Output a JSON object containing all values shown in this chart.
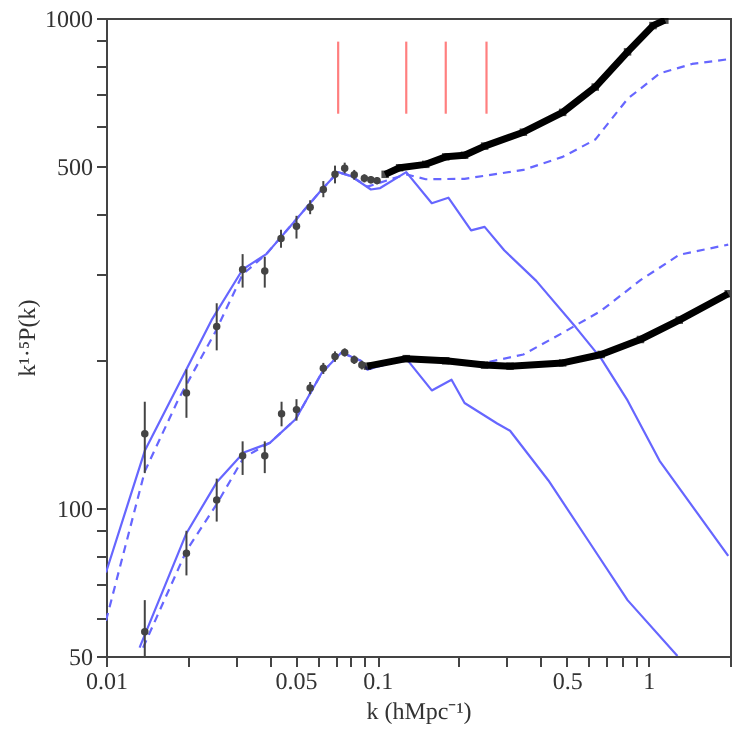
{
  "chart_data": {
    "type": "line",
    "xlabel": "k (hMpc⁻¹)",
    "ylabel": "k¹·⁵P(k)",
    "log": "xy",
    "grid": false,
    "xlim": [
      0.01,
      2
    ],
    "ylim": [
      50,
      1000
    ],
    "xticks": [
      0.01,
      {
        "value": 0.02,
        "label": null
      },
      {
        "value": 0.03,
        "label": null
      },
      {
        "value": 0.04,
        "label": null
      },
      0.05,
      {
        "value": 0.06,
        "label": null
      },
      {
        "value": 0.07,
        "label": null
      },
      {
        "value": 0.08,
        "label": null
      },
      {
        "value": 0.09,
        "label": null
      },
      0.1,
      {
        "value": 0.2,
        "label": null
      },
      {
        "value": 0.3,
        "label": null
      },
      {
        "value": 0.4,
        "label": null
      },
      0.5,
      {
        "value": 0.6,
        "label": null
      },
      {
        "value": 0.7,
        "label": null
      },
      {
        "value": 0.8,
        "label": null
      },
      {
        "value": 0.9,
        "label": null
      },
      1,
      {
        "value": 2,
        "label": null
      }
    ],
    "yticks": [
      50,
      {
        "value": 60,
        "label": null
      },
      {
        "value": 70,
        "label": null
      },
      {
        "value": 80,
        "label": null
      },
      {
        "value": 90,
        "label": null
      },
      100,
      {
        "value": 200,
        "label": null
      },
      {
        "value": 300,
        "label": null
      },
      {
        "value": 400,
        "label": null
      },
      500,
      {
        "value": 600,
        "label": null
      },
      {
        "value": 700,
        "label": null
      },
      {
        "value": 800,
        "label": null
      },
      {
        "value": 900,
        "label": null
      },
      1000
    ],
    "series": [
      {
        "color": "#6666ff",
        "line_style": "solid",
        "x": [
          0.01,
          0.0139,
          0.0245,
          0.0319,
          0.039,
          0.05,
          0.0625,
          0.0718,
          0.0801,
          0.0948,
          0.1026,
          0.128,
          0.159,
          0.183,
          0.222,
          0.249,
          0.294,
          0.386,
          0.54,
          0.67,
          0.838,
          1.1,
          1.97
        ],
        "values": [
          74,
          131,
          242,
          307,
          330,
          387,
          447,
          485,
          476,
          447,
          450,
          485,
          419,
          430,
          369,
          375,
          336,
          291,
          234,
          202,
          166,
          125,
          80
        ]
      },
      {
        "color": "#6666ff",
        "line_style": "dashed",
        "x": [
          0.01,
          0.0139,
          0.0185,
          0.0252,
          0.0319,
          0.039,
          0.05,
          0.0625,
          0.0718,
          0.0801,
          0.0921,
          0.128,
          0.151,
          0.21,
          0.346,
          0.483,
          0.637,
          0.838,
          1.1,
          1.45,
          1.97
        ],
        "values": [
          59,
          119,
          167,
          228,
          300,
          330,
          387,
          447,
          485,
          476,
          453,
          480,
          469,
          470,
          490,
          521,
          565,
          684,
          771,
          806,
          824
        ]
      },
      {
        "color": "#6666ff",
        "line_style": "solid",
        "x": [
          0.0133,
          0.0198,
          0.0256,
          0.0322,
          0.0402,
          0.05,
          0.0625,
          0.0738,
          0.087,
          0.0921,
          0.128,
          0.159,
          0.188,
          0.21,
          0.277,
          0.309,
          0.428,
          0.6,
          0.838,
          1.28
        ],
        "values": [
          52,
          89,
          113,
          130,
          136,
          152,
          189,
          208,
          200,
          192,
          202,
          174,
          183,
          164,
          149,
          144,
          114,
          86,
          65,
          50
        ]
      },
      {
        "color": "#6666ff",
        "line_style": "dashed",
        "x": [
          0.0137,
          0.0198,
          0.0256,
          0.0322,
          0.0402,
          0.05,
          0.0625,
          0.0738,
          0.087,
          0.0921,
          0.128,
          0.179,
          0.249,
          0.346,
          0.483,
          0.67,
          0.935,
          1.3,
          1.97
        ],
        "values": [
          52,
          82,
          102,
          127,
          136,
          152,
          189,
          208,
          200,
          192,
          202,
          198,
          198,
          206,
          228,
          253,
          292,
          329,
          345
        ]
      },
      {
        "color": "#000000",
        "marker": "square",
        "line_style": "solid",
        "x": [
          0.107,
          0.121,
          0.151,
          0.179,
          0.21,
          0.249,
          0.346,
          0.483,
          0.637,
          0.838,
          1.04,
          1.15
        ],
        "values": [
          480,
          495,
          503,
          521,
          525,
          548,
          585,
          642,
          723,
          853,
          965,
          990
        ]
      },
      {
        "color": "#000000",
        "marker": "square",
        "line_style": "solid",
        "x": [
          0.0921,
          0.128,
          0.179,
          0.249,
          0.309,
          0.483,
          0.67,
          0.935,
          1.3,
          1.97
        ],
        "values": [
          195,
          202,
          200,
          196,
          195,
          198,
          206,
          221,
          242,
          274
        ]
      },
      {
        "type": "scatter",
        "color": "#444444",
        "marker": "circle",
        "x": [
          0.0139,
          0.0198,
          0.0256,
          0.0319,
          0.0385,
          0.0442,
          0.0504,
          0.0566,
          0.0633,
          0.0699,
          0.0759,
          0.0823,
          0.0897,
          0.0948,
          0.0999
        ],
        "values": [
          142,
          172,
          235,
          307,
          305,
          355,
          376,
          411,
          447,
          480,
          494,
          479,
          471,
          468,
          466
        ],
        "errors": [
          [
            118,
            165
          ],
          [
            153,
            192
          ],
          [
            210,
            262
          ],
          [
            282,
            330
          ],
          [
            282,
            326
          ],
          [
            340,
            370
          ],
          [
            355,
            395
          ],
          [
            398,
            425
          ],
          [
            431,
            465
          ],
          [
            460,
            500
          ],
          [
            482,
            507
          ],
          [
            468,
            490
          ],
          [
            462,
            480
          ],
          [
            460,
            476
          ],
          [
            458,
            474
          ]
        ]
      },
      {
        "type": "scatter",
        "color": "#444444",
        "marker": "circle",
        "x": [
          0.0139,
          0.0198,
          0.0256,
          0.0319,
          0.0385,
          0.0444,
          0.0504,
          0.0566,
          0.0633,
          0.0699,
          0.0759,
          0.0823,
          0.0878
        ],
        "values": [
          56,
          81,
          104,
          128,
          128,
          156,
          159,
          176,
          193,
          204,
          208,
          201,
          196
        ],
        "errors": [
          [
            50,
            65
          ],
          [
            73,
            90
          ],
          [
            94,
            115
          ],
          [
            117,
            137
          ],
          [
            118,
            137
          ],
          [
            147,
            165
          ],
          [
            151,
            167
          ],
          [
            171,
            181
          ],
          [
            188,
            198
          ],
          [
            199,
            209
          ],
          [
            204,
            212
          ],
          [
            197,
            205
          ],
          [
            192,
            200
          ]
        ]
      },
      {
        "color": "#ff7f7f",
        "line_style": "solid",
        "x": [
          0.0718,
          0.0718
        ],
        "values": [
          638,
          895
        ]
      },
      {
        "color": "#ff7f7f",
        "line_style": "solid",
        "x": [
          0.128,
          0.128
        ],
        "values": [
          638,
          895
        ]
      },
      {
        "color": "#ff7f7f",
        "line_style": "solid",
        "x": [
          0.179,
          0.179
        ],
        "values": [
          638,
          895
        ]
      },
      {
        "color": "#ff7f7f",
        "line_style": "solid",
        "x": [
          0.253,
          0.253
        ],
        "values": [
          638,
          895
        ]
      }
    ]
  }
}
